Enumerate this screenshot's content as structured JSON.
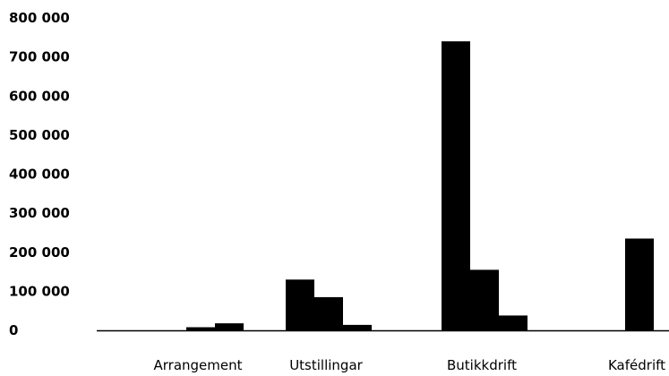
{
  "chart_data": {
    "type": "bar",
    "title": "",
    "xlabel": "",
    "ylabel": "",
    "categories": [
      "Arrangement",
      "Utstillingar",
      "Butikkdrift",
      "Kafédrift"
    ],
    "series": [
      {
        "values": [
          0,
          130000,
          740000,
          0
        ]
      },
      {
        "values": [
          8000,
          85000,
          155000,
          235000
        ]
      },
      {
        "values": [
          18000,
          14000,
          38000,
          0
        ]
      }
    ],
    "ylim": [
      0,
      800000
    ],
    "y_ticks": [
      0,
      100000,
      200000,
      300000,
      400000,
      500000,
      600000,
      700000,
      800000
    ],
    "y_tick_labels": [
      "0",
      "100 000",
      "200 000",
      "300 000",
      "400 000",
      "500 000",
      "600 000",
      "700 000",
      "800 000"
    ],
    "grid": false,
    "bar_color": "#000000"
  }
}
